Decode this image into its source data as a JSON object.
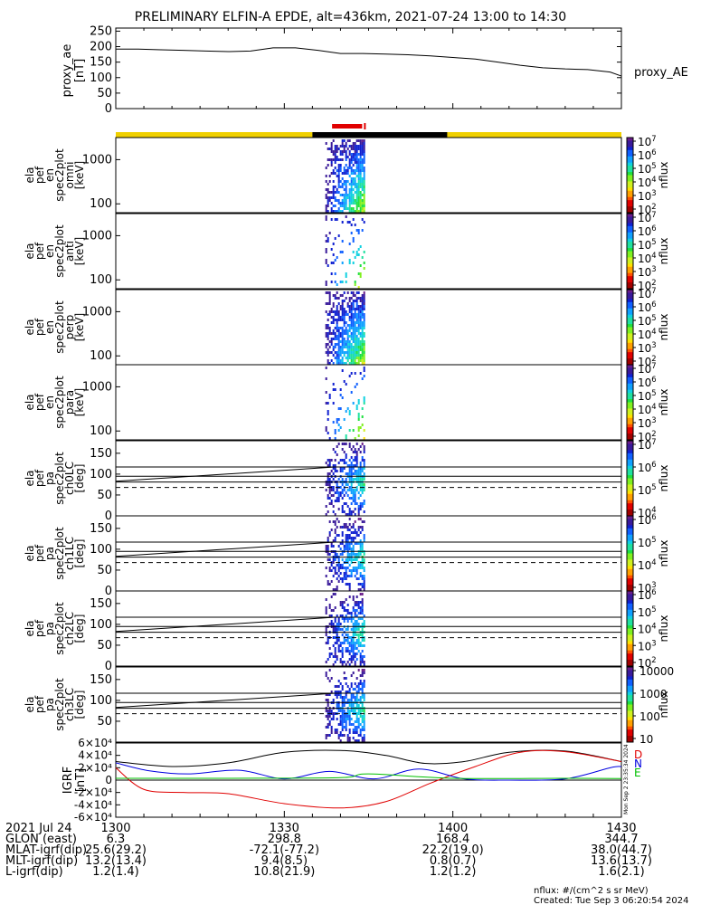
{
  "title": "PRELIMINARY ELFIN-A EPDE, alt=436km, 2021-07-24 13:00 to 14:30",
  "colors": {
    "yellow": "#f0d000",
    "black": "#000000",
    "red": "#e00000",
    "blue": "#0000e0",
    "green": "#00c000"
  },
  "time_bar": {
    "segments": [
      {
        "start": 0,
        "end": 35,
        "color": "yellow"
      },
      {
        "start": 35,
        "end": 59,
        "color": "black"
      },
      {
        "start": 59,
        "end": 90,
        "color": "yellow"
      }
    ],
    "science_zone": {
      "start": 38.5,
      "end": 44.5
    }
  },
  "chart_data": [
    {
      "type": "line",
      "ylabel": "proxy_ae\n[nT]",
      "right_label": "proxy_AE",
      "ylim": [
        0,
        260
      ],
      "yticks": [
        0,
        50,
        100,
        150,
        200,
        250
      ],
      "x": [
        0,
        4,
        8,
        12,
        16,
        20,
        24,
        28,
        32,
        36,
        40,
        44,
        48,
        52,
        56,
        60,
        64,
        68,
        72,
        76,
        80,
        84,
        88,
        90
      ],
      "values": [
        192,
        192,
        190,
        188,
        186,
        184,
        186,
        196,
        196,
        188,
        178,
        178,
        176,
        174,
        170,
        165,
        160,
        150,
        140,
        132,
        128,
        126,
        118,
        105
      ]
    },
    {
      "type": "heatmap",
      "name": "spectrogram-omni",
      "ylabel": [
        "ela",
        "pef",
        "en",
        "spec2plot",
        "omni",
        "[keV]"
      ],
      "yticks": [
        100,
        1000
      ],
      "colorbar": {
        "label": "nflux",
        "ticks": [
          "10^2",
          "10^3",
          "10^4",
          "10^5",
          "10^6",
          "10^7"
        ]
      },
      "x_range": [
        37,
        44
      ]
    },
    {
      "type": "heatmap",
      "name": "spectrogram-anti",
      "ylabel": [
        "ela",
        "pef",
        "en",
        "spec2plot",
        "anti",
        "[keV]"
      ],
      "yticks": [
        100,
        1000
      ],
      "colorbar": {
        "label": "nflux",
        "ticks": [
          "10^2",
          "10^3",
          "10^4",
          "10^5",
          "10^6",
          "10^7"
        ]
      },
      "x_range": [
        38,
        44
      ]
    },
    {
      "type": "heatmap",
      "name": "spectrogram-perp",
      "ylabel": [
        "ela",
        "pef",
        "en",
        "spec2plot",
        "perp",
        "[keV]"
      ],
      "yticks": [
        100,
        1000
      ],
      "colorbar": {
        "label": "nflux",
        "ticks": [
          "10^2",
          "10^3",
          "10^4",
          "10^5",
          "10^6",
          "10^7"
        ]
      },
      "x_range": [
        37,
        44
      ]
    },
    {
      "type": "heatmap",
      "name": "spectrogram-para",
      "ylabel": [
        "ela",
        "pef",
        "en",
        "spec2plot",
        "para",
        "[keV]"
      ],
      "yticks": [
        100,
        1000
      ],
      "colorbar": {
        "label": "nflux",
        "ticks": [
          "10^2",
          "10^3",
          "10^4",
          "10^5",
          "10^6",
          "10^7"
        ]
      },
      "x_range": [
        38,
        44
      ]
    },
    {
      "type": "heatmap",
      "name": "pa-ch0LC",
      "ylabel": [
        "ela",
        "pef",
        "pa",
        "spec2plot",
        "ch0LC",
        "[deg]"
      ],
      "yticks": [
        0,
        50,
        100,
        150
      ],
      "colorbar": {
        "label": "nflux",
        "ticks": [
          "10^4",
          "10^5",
          "10^6",
          "10^7"
        ]
      },
      "lines": {
        "solid": [
          [
            0,
            88,
            90,
            95
          ],
          [
            0,
            80,
            90,
            80
          ]
        ],
        "dashed": [
          [
            0,
            68,
            90,
            68
          ]
        ],
        "rising": [
          [
            0,
            83,
            40,
            117,
            90,
            117
          ]
        ]
      }
    },
    {
      "type": "heatmap",
      "name": "pa-ch1LC",
      "ylabel": [
        "ela",
        "pef",
        "pa",
        "spec2plot",
        "ch1LC",
        "[deg]"
      ],
      "yticks": [
        0,
        50,
        100,
        150
      ],
      "colorbar": {
        "label": "nflux",
        "ticks": [
          "10^3",
          "10^4",
          "10^5",
          "10^6"
        ]
      }
    },
    {
      "type": "heatmap",
      "name": "pa-ch2LC",
      "ylabel": [
        "ela",
        "pef",
        "pa",
        "spec2plot",
        "ch2LC",
        "[deg]"
      ],
      "yticks": [
        0,
        50,
        100,
        150
      ],
      "colorbar": {
        "label": "nflux",
        "ticks": [
          "10^2",
          "10^3",
          "10^4",
          "10^5",
          "10^6"
        ]
      }
    },
    {
      "type": "heatmap",
      "name": "pa-ch3LC",
      "ylabel": [
        "ela",
        "pef",
        "pa",
        "spec2plot",
        "ch3LC",
        "[deg]"
      ],
      "yticks": [
        50,
        100,
        150
      ],
      "colorbar": {
        "label": "nflux",
        "ticks": [
          "10",
          "100",
          "1000",
          "10000"
        ]
      }
    },
    {
      "type": "line",
      "name": "igrf",
      "ylabel": "IGRF\n[nT]",
      "ylim": [
        -60000,
        60000
      ],
      "yticks": [
        -60000,
        -40000,
        -20000,
        0,
        20000,
        40000,
        60000
      ],
      "ytick_labels": [
        "-6×10⁴",
        "-4×10⁴",
        "-2×10⁴",
        "0",
        "2×10⁴",
        "4×10⁴",
        "6×10⁴"
      ],
      "legend": [
        "D",
        "N",
        "E"
      ],
      "series": [
        {
          "name": "total",
          "color": "black",
          "x": [
            0,
            10,
            20,
            30,
            40,
            48,
            55,
            62,
            70,
            80,
            90
          ],
          "values": [
            30000,
            22000,
            28000,
            45000,
            48000,
            40000,
            27000,
            30000,
            45000,
            47000,
            30000
          ]
        },
        {
          "name": "D",
          "color": "red",
          "x": [
            0,
            5,
            12,
            20,
            30,
            40,
            48,
            56,
            64,
            72,
            80,
            90
          ],
          "values": [
            20000,
            -15000,
            -20000,
            -22000,
            -38000,
            -45000,
            -35000,
            -5000,
            22000,
            45000,
            46000,
            30000
          ]
        },
        {
          "name": "N",
          "color": "blue",
          "x": [
            0,
            6,
            13,
            22,
            30,
            38,
            46,
            54,
            62,
            70,
            80,
            88,
            90
          ],
          "values": [
            28000,
            15000,
            10000,
            16000,
            2000,
            14000,
            2000,
            18000,
            2000,
            0,
            2000,
            20000,
            22000
          ]
        },
        {
          "name": "E",
          "color": "green",
          "x": [
            0,
            20,
            40,
            45,
            60,
            80,
            90
          ],
          "values": [
            3000,
            3000,
            4000,
            10000,
            3000,
            3000,
            2500
          ]
        }
      ]
    }
  ],
  "x_axis": {
    "date_label": "2021 Jul 24",
    "ticks": [
      "1300",
      "1330",
      "1400",
      "1430"
    ],
    "rows": [
      {
        "label": "GLON (east)",
        "values": [
          "6.3",
          "298.8",
          "168.4",
          "344.7"
        ]
      },
      {
        "label": "MLAT-igrf(dip)",
        "values": [
          "25.6(29.2)",
          "-72.1(-77.2)",
          "22.2(19.0)",
          "38.0(44.7)"
        ]
      },
      {
        "label": "MLT-igrf(dip)",
        "values": [
          "13.2(13.4)",
          "9.4(8.5)",
          "0.8(0.7)",
          "13.6(13.7)"
        ]
      },
      {
        "label": "L-igrf(dip)",
        "values": [
          "1.2(1.4)",
          "10.8(21.9)",
          "1.2(1.2)",
          "1.6(2.1)"
        ]
      }
    ]
  },
  "footer": {
    "units": "nflux: #/(cm^2 s sr MeV)",
    "created": "Created: Tue Sep  3 06:20:54 2024",
    "side_stamp": "Mon Sep  2 23:35:34 2024"
  }
}
